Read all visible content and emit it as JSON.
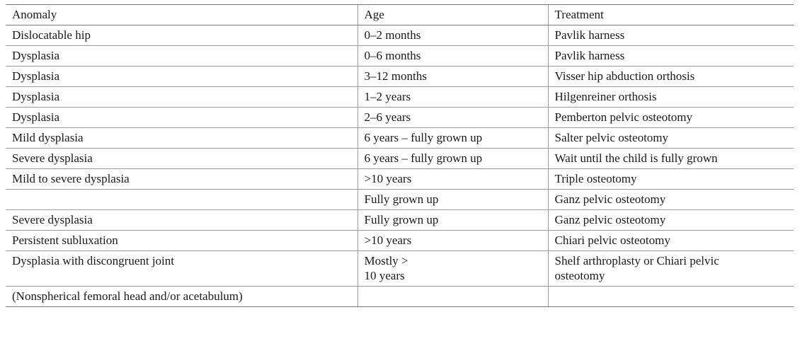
{
  "table": {
    "headers": [
      "Anomaly",
      "Age",
      "Treatment"
    ],
    "rows": [
      {
        "anomaly": "Dislocatable hip",
        "age": "0–2 months",
        "treatment": "Pavlik harness"
      },
      {
        "anomaly": "Dysplasia",
        "age": "0–6 months",
        "treatment": "Pavlik harness"
      },
      {
        "anomaly": "Dysplasia",
        "age": "3–12 months",
        "treatment": "Visser hip abduction orthosis"
      },
      {
        "anomaly": "Dysplasia",
        "age": "1–2 years",
        "treatment": "Hilgenreiner orthosis"
      },
      {
        "anomaly": "Dysplasia",
        "age": "2–6 years",
        "treatment": "Pemberton pelvic osteotomy"
      },
      {
        "anomaly": "Mild dysplasia",
        "age": "6 years – fully grown up",
        "treatment": "Salter pelvic osteotomy"
      },
      {
        "anomaly": "Severe dysplasia",
        "age": "6 years – fully grown up",
        "treatment": "Wait until the child is fully grown"
      },
      {
        "anomaly": "Mild to severe dysplasia",
        "age": ">10 years",
        "treatment": "Triple osteotomy"
      },
      {
        "anomaly": "",
        "age": "Fully grown up",
        "treatment": "Ganz pelvic osteotomy"
      },
      {
        "anomaly": "Severe dysplasia",
        "age": "Fully grown up",
        "treatment": "Ganz pelvic osteotomy"
      },
      {
        "anomaly": "Persistent subluxation",
        "age": ">10 years",
        "treatment": "Chiari pelvic osteotomy"
      },
      {
        "anomaly": "Dysplasia with discongruent joint",
        "age": "Mostly >\n10 years",
        "treatment": "Shelf arthroplasty or Chiari pelvic\nosteotomy"
      },
      {
        "anomaly": "(Nonspherical femoral head and/or acetabulum)",
        "age": "",
        "treatment": ""
      }
    ]
  }
}
